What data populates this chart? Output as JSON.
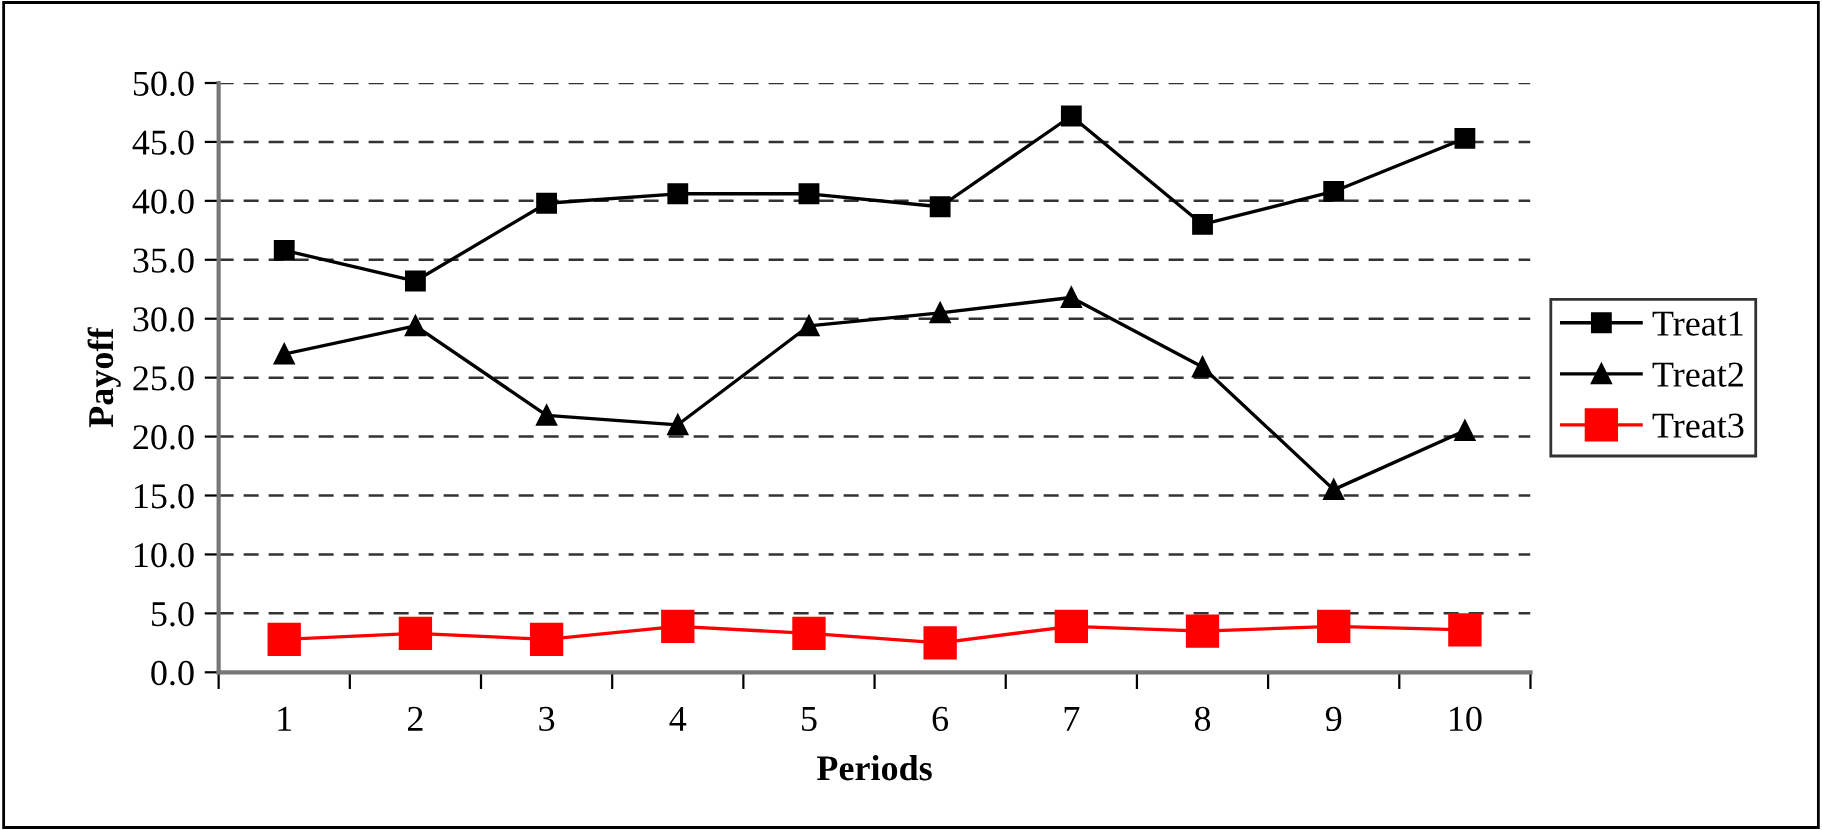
{
  "chart_data": {
    "type": "line",
    "xlabel": "Periods",
    "ylabel": "Payoff",
    "categories": [
      "1",
      "2",
      "3",
      "4",
      "5",
      "6",
      "7",
      "8",
      "9",
      "10"
    ],
    "series": [
      {
        "name": "Treat1",
        "color": "#000000",
        "marker": "square",
        "values": [
          35.8,
          33.2,
          39.8,
          40.6,
          40.6,
          39.5,
          47.2,
          38.0,
          40.8,
          45.3
        ]
      },
      {
        "name": "Treat2",
        "color": "#000000",
        "marker": "triangle",
        "values": [
          27.0,
          29.4,
          21.8,
          21.0,
          29.4,
          30.5,
          31.8,
          25.9,
          15.5,
          20.5
        ]
      },
      {
        "name": "Treat3",
        "color": "#ff0000",
        "marker": "square",
        "values": [
          2.8,
          3.3,
          2.8,
          3.9,
          3.3,
          2.5,
          3.9,
          3.5,
          3.9,
          3.6
        ]
      }
    ],
    "ylim": [
      0,
      50
    ],
    "yticks": [
      {
        "value": 0,
        "label": "0.0"
      },
      {
        "value": 5,
        "label": "5.0"
      },
      {
        "value": 10,
        "label": "10.0"
      },
      {
        "value": 15,
        "label": "15.0"
      },
      {
        "value": 20,
        "label": "20.0"
      },
      {
        "value": 25,
        "label": "25.0"
      },
      {
        "value": 30,
        "label": "30.0"
      },
      {
        "value": 35,
        "label": "35.0"
      },
      {
        "value": 40,
        "label": "40.0"
      },
      {
        "value": 45,
        "label": "45.0"
      },
      {
        "value": 50,
        "label": "50.0"
      }
    ],
    "grid": "y",
    "legend": "right"
  }
}
